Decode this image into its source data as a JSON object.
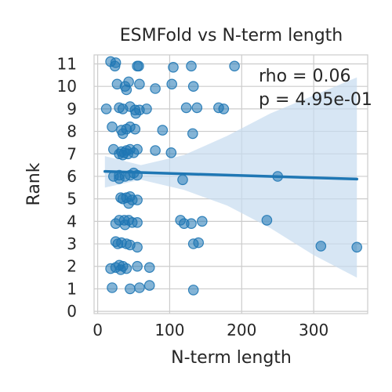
{
  "chart_data": {
    "type": "scatter",
    "title": "ESMFold vs N-term length",
    "xlabel": "N-term length",
    "ylabel": "Rank",
    "xlim": [
      -5,
      375
    ],
    "ylim": [
      -0.1,
      11.4
    ],
    "xticks": [
      0,
      100,
      200,
      300
    ],
    "yticks": [
      0,
      1,
      2,
      3,
      4,
      5,
      6,
      7,
      8,
      9,
      10,
      11
    ],
    "grid": true,
    "colors": {
      "points": "#1f77b4",
      "line": "#1f77b4",
      "band": "#c6dbef"
    },
    "annotations": [
      "rho = 0.06",
      "p = 4.95e-01"
    ],
    "points": [
      [
        18,
        11.1
      ],
      [
        25,
        11.05
      ],
      [
        24,
        10.9
      ],
      [
        57,
        10.9
      ],
      [
        55,
        10.9
      ],
      [
        105,
        10.85
      ],
      [
        130,
        10.9
      ],
      [
        190,
        10.9
      ],
      [
        27,
        10.1
      ],
      [
        38,
        10.0
      ],
      [
        43,
        10.2
      ],
      [
        58,
        10.1
      ],
      [
        103,
        10.1
      ],
      [
        133,
        10.0
      ],
      [
        80,
        9.9
      ],
      [
        40,
        9.85
      ],
      [
        12,
        9.0
      ],
      [
        30,
        9.05
      ],
      [
        35,
        9.0
      ],
      [
        45,
        9.1
      ],
      [
        52,
        8.95
      ],
      [
        58,
        8.95
      ],
      [
        68,
        9.0
      ],
      [
        123,
        9.05
      ],
      [
        138,
        9.05
      ],
      [
        168,
        9.05
      ],
      [
        175,
        9.0
      ],
      [
        53,
        8.8
      ],
      [
        20,
        8.2
      ],
      [
        33,
        8.05
      ],
      [
        40,
        8.1
      ],
      [
        45,
        8.2
      ],
      [
        52,
        8.1
      ],
      [
        90,
        8.05
      ],
      [
        132,
        7.9
      ],
      [
        35,
        7.9
      ],
      [
        22,
        7.2
      ],
      [
        30,
        7.0
      ],
      [
        33,
        7.1
      ],
      [
        37,
        7.05
      ],
      [
        40,
        7.15
      ],
      [
        42,
        7.0
      ],
      [
        45,
        7.2
      ],
      [
        50,
        7.05
      ],
      [
        55,
        7.2
      ],
      [
        80,
        7.15
      ],
      [
        102,
        7.05
      ],
      [
        35,
        6.95
      ],
      [
        22,
        6.0
      ],
      [
        30,
        6.05
      ],
      [
        38,
        6.0
      ],
      [
        45,
        6.05
      ],
      [
        50,
        6.15
      ],
      [
        55,
        6.05
      ],
      [
        30,
        5.9
      ],
      [
        118,
        5.85
      ],
      [
        250,
        6.0
      ],
      [
        32,
        5.05
      ],
      [
        35,
        5.0
      ],
      [
        40,
        5.05
      ],
      [
        45,
        5.1
      ],
      [
        48,
        4.95
      ],
      [
        55,
        4.95
      ],
      [
        43,
        4.8
      ],
      [
        25,
        3.9
      ],
      [
        30,
        4.05
      ],
      [
        37,
        4.05
      ],
      [
        43,
        4.05
      ],
      [
        48,
        3.95
      ],
      [
        55,
        3.95
      ],
      [
        115,
        4.05
      ],
      [
        120,
        3.9
      ],
      [
        130,
        3.9
      ],
      [
        145,
        4.0
      ],
      [
        235,
        4.05
      ],
      [
        38,
        3.85
      ],
      [
        25,
        3.1
      ],
      [
        28,
        3.0
      ],
      [
        33,
        3.05
      ],
      [
        40,
        3.0
      ],
      [
        45,
        2.95
      ],
      [
        55,
        2.85
      ],
      [
        133,
        3.0
      ],
      [
        140,
        3.05
      ],
      [
        310,
        2.9
      ],
      [
        360,
        2.85
      ],
      [
        18,
        1.9
      ],
      [
        25,
        1.95
      ],
      [
        30,
        2.05
      ],
      [
        35,
        2.0
      ],
      [
        40,
        1.9
      ],
      [
        55,
        2.0
      ],
      [
        72,
        1.95
      ],
      [
        32,
        1.85
      ],
      [
        20,
        1.05
      ],
      [
        45,
        1.0
      ],
      [
        58,
        1.05
      ],
      [
        72,
        1.15
      ],
      [
        133,
        0.95
      ]
    ],
    "regression": {
      "x": [
        10,
        360
      ],
      "y": [
        6.22,
        5.88
      ]
    },
    "ci_band": {
      "x": [
        10,
        60,
        120,
        180,
        240,
        300,
        360
      ],
      "upper": [
        6.9,
        6.5,
        6.95,
        7.8,
        8.8,
        9.6,
        10.4
      ],
      "lower": [
        5.5,
        5.85,
        5.4,
        4.7,
        3.7,
        2.5,
        1.5
      ]
    }
  }
}
